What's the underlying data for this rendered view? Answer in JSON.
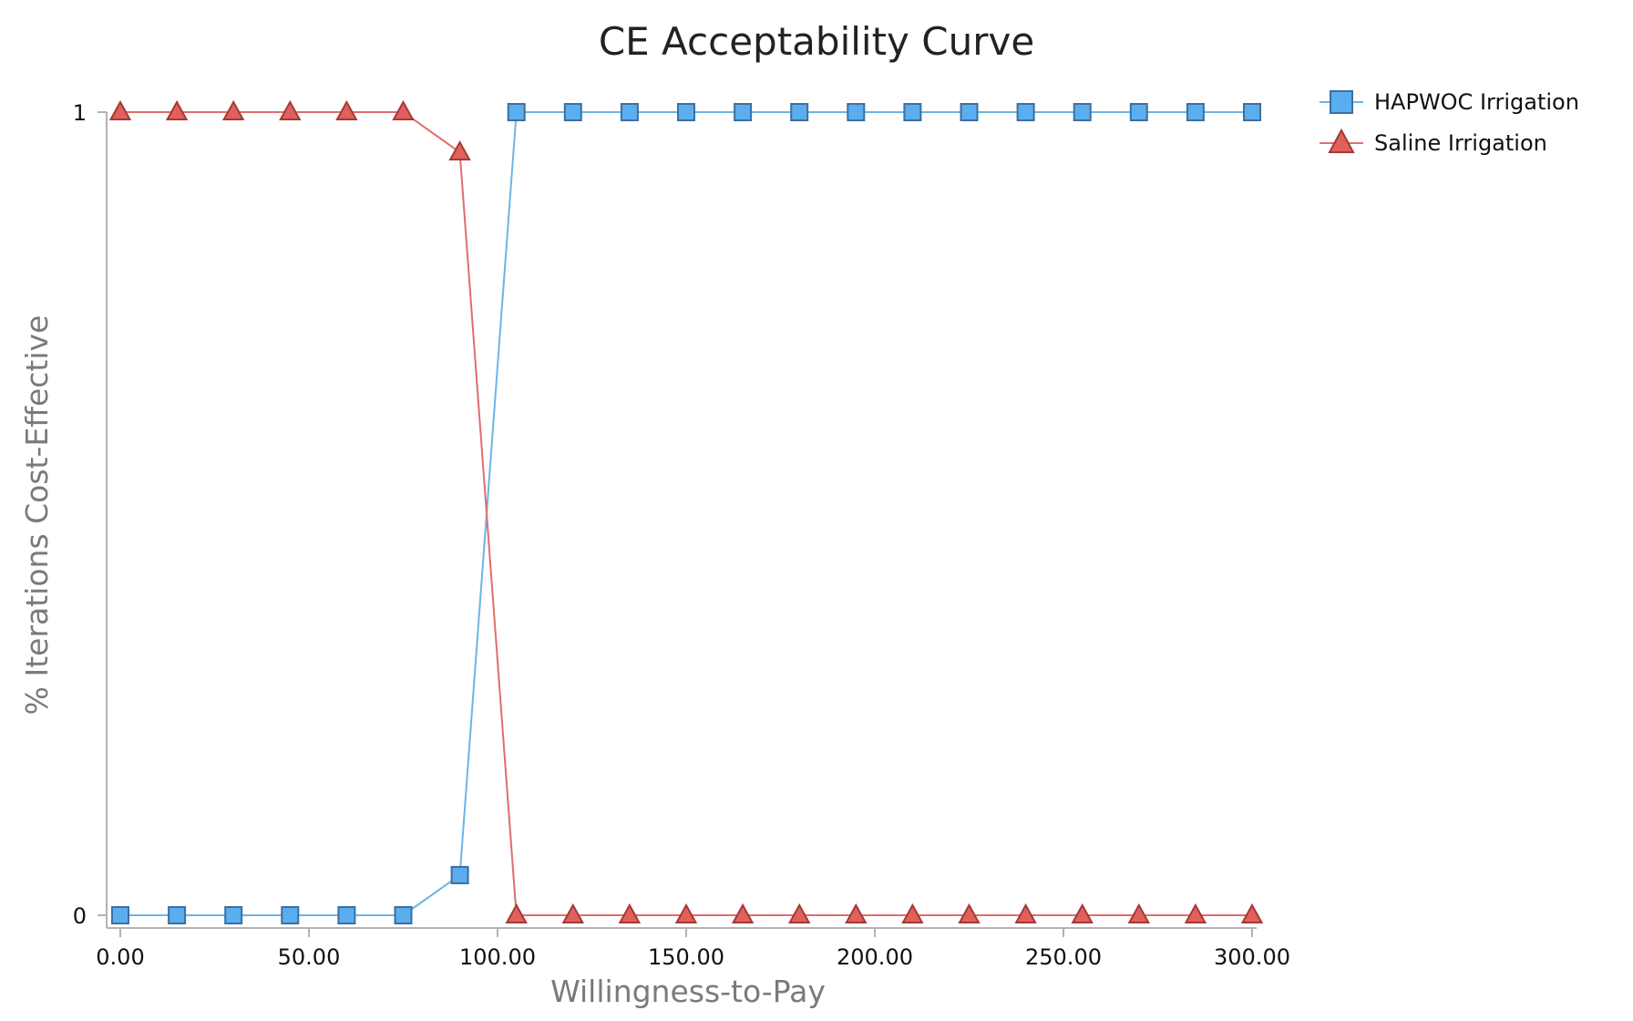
{
  "chart_data": {
    "type": "line",
    "title": "CE Acceptability Curve",
    "xlabel": "Willingness-to-Pay",
    "ylabel": "% Iterations Cost-Effective",
    "x": [
      0,
      15,
      30,
      45,
      60,
      75,
      90,
      105,
      120,
      135,
      150,
      165,
      180,
      195,
      210,
      225,
      240,
      255,
      270,
      285,
      300
    ],
    "xlim": [
      0,
      300
    ],
    "ylim": [
      0,
      1
    ],
    "xticks": [
      0,
      50,
      100,
      150,
      200,
      250,
      300
    ],
    "xtick_labels": [
      "0.00",
      "50.00",
      "100.00",
      "150.00",
      "200.00",
      "250.00",
      "300.00"
    ],
    "yticks": [
      0,
      1
    ],
    "ytick_labels": [
      "0",
      "1"
    ],
    "grid": false,
    "legend_position": "top-right, outside plot",
    "series": [
      {
        "name": "HAPWOC Irrigation",
        "marker": "square",
        "line_color": "#6cb4e6",
        "fill_color": "#5aaef0",
        "edge_color": "#3d6f9e",
        "values": [
          0,
          0,
          0,
          0,
          0,
          0,
          0.05,
          1,
          1,
          1,
          1,
          1,
          1,
          1,
          1,
          1,
          1,
          1,
          1,
          1,
          1
        ]
      },
      {
        "name": "Saline Irrigation",
        "marker": "triangle",
        "line_color": "#e06d6d",
        "fill_color": "#e0605c",
        "edge_color": "#a23a36",
        "values": [
          1,
          1,
          1,
          1,
          1,
          1,
          0.95,
          0,
          0,
          0,
          0,
          0,
          0,
          0,
          0,
          0,
          0,
          0,
          0,
          0,
          0
        ]
      }
    ],
    "axis_color": "#b3b3b3"
  }
}
